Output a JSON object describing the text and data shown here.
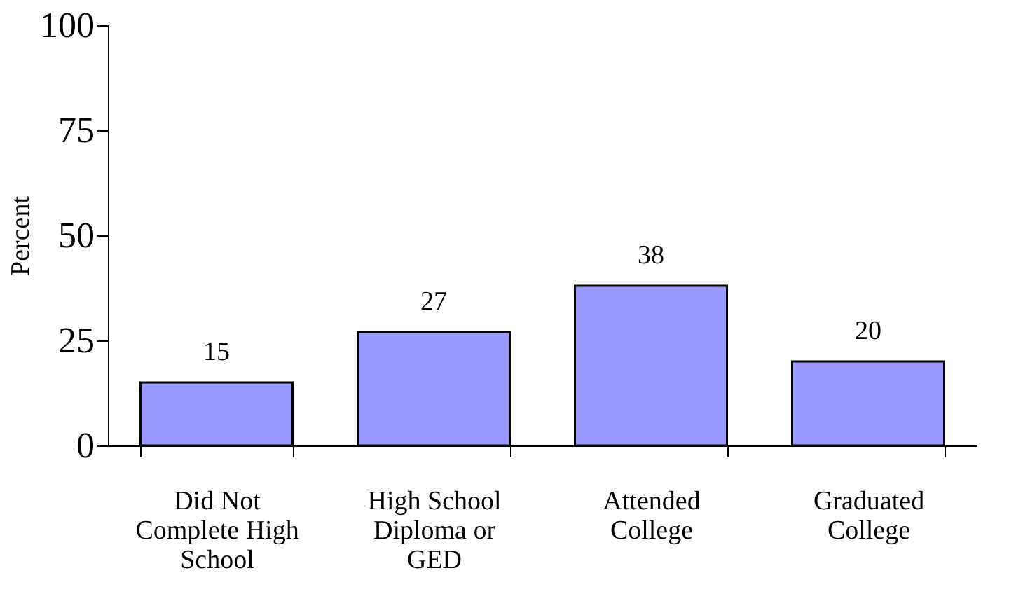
{
  "chart_data": {
    "type": "bar",
    "ylabel": "Percent",
    "categories": [
      "Did Not Complete High School",
      "High School Diploma or GED",
      "Attended College",
      "Graduated College"
    ],
    "values": [
      15,
      27,
      38,
      20
    ],
    "color": "#9999ff",
    "ylim": [
      0,
      100
    ],
    "yticks": [
      0,
      25,
      50,
      75,
      100
    ],
    "grid": false,
    "data_labels": true
  }
}
